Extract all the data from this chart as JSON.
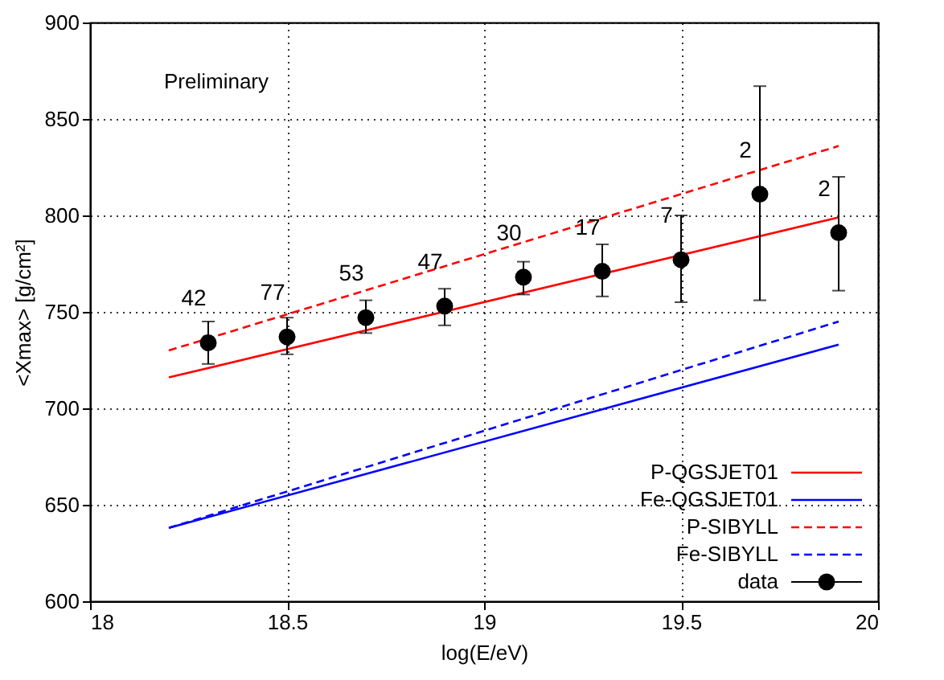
{
  "chart_data": {
    "type": "scatter",
    "xlabel": "log(E/eV)",
    "ylabel": "<Xmax> [g/cm²]",
    "xlim": [
      18,
      20
    ],
    "xticks": [
      18,
      18.5,
      19,
      19.5,
      20
    ],
    "ylim": [
      600,
      900
    ],
    "yticks": [
      600,
      650,
      700,
      750,
      800,
      850,
      900
    ],
    "grid": true,
    "legend": "bottom right",
    "series": [
      {
        "name": "P-QGSJET01",
        "type": "line",
        "color": "#ff0000",
        "line_style": "solid",
        "x": [
          18.2,
          19.9
        ],
        "values": [
          716,
          799
        ]
      },
      {
        "name": "Fe-QGSJET01",
        "type": "line",
        "color": "#0000ff",
        "line_style": "solid",
        "x": [
          18.2,
          19.9
        ],
        "values": [
          638,
          733
        ]
      },
      {
        "name": "P-SIBYLL",
        "type": "line",
        "color": "#ff0000",
        "line_style": "dashed",
        "x": [
          18.2,
          19.9
        ],
        "values": [
          730,
          836
        ]
      },
      {
        "name": "Fe-SIBYLL",
        "type": "line",
        "color": "#0000ff",
        "line_style": "dashed",
        "x": [
          18.2,
          19.9
        ],
        "values": [
          638,
          745
        ]
      },
      {
        "name": "data",
        "marker": "circle",
        "color": "#000000",
        "x": [
          18.3,
          18.5,
          18.7,
          18.9,
          19.1,
          19.3,
          19.5,
          19.7,
          19.9
        ],
        "values": [
          734,
          737,
          747,
          753,
          768,
          771,
          777,
          811,
          791
        ],
        "errors": [
          [
            723,
            745
          ],
          [
            728,
            747
          ],
          [
            739,
            756
          ],
          [
            743,
            762
          ],
          [
            759,
            776
          ],
          [
            758,
            785
          ],
          [
            755,
            800
          ],
          [
            756,
            867
          ],
          [
            761,
            820
          ]
        ]
      }
    ],
    "annotations": [
      "Preliminary",
      "42",
      "77",
      "53",
      "47",
      "30",
      "17",
      "7",
      "2",
      "2"
    ]
  }
}
